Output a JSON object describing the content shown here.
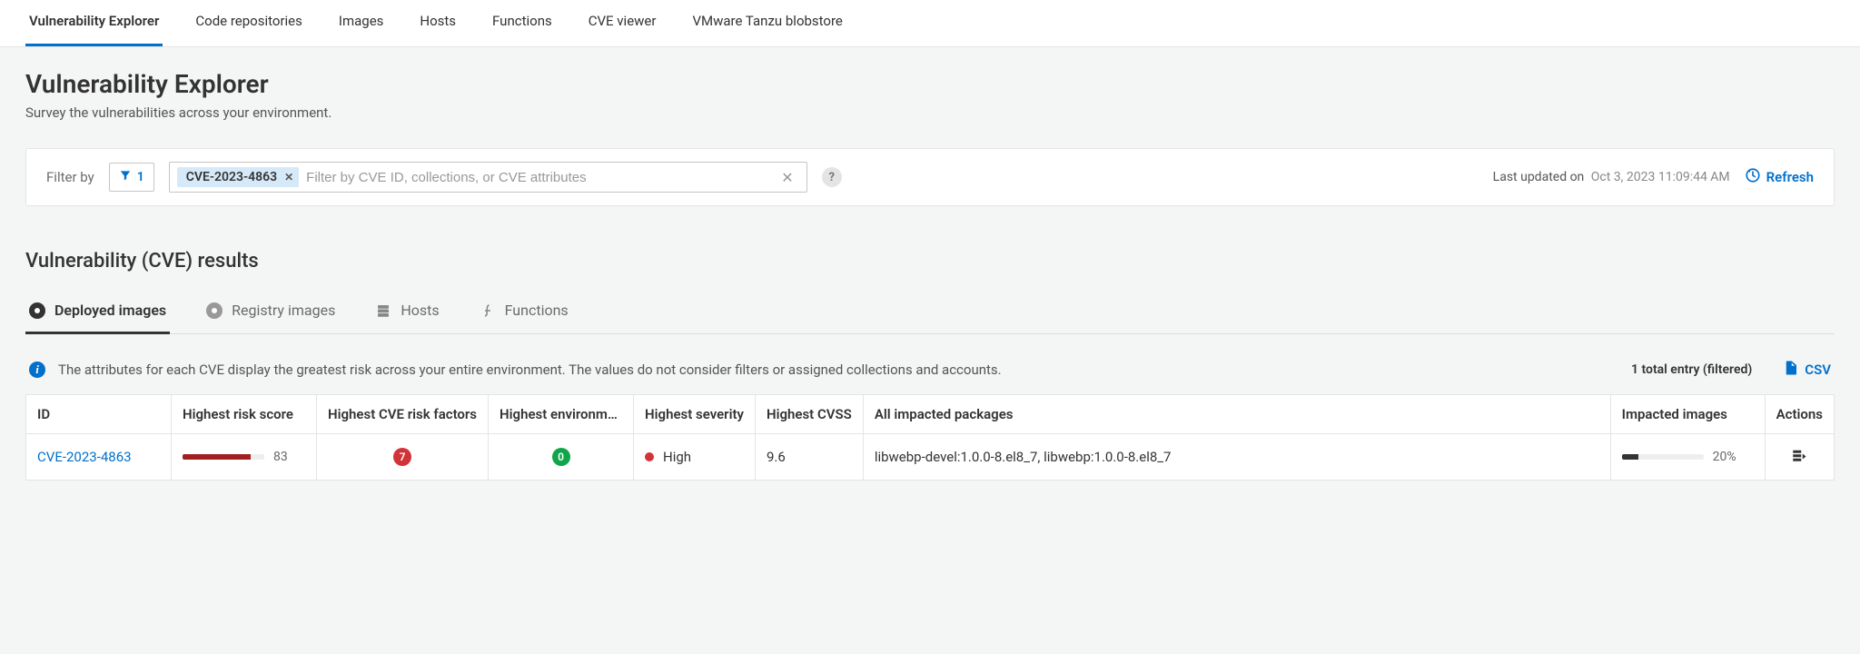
{
  "topTabs": {
    "items": [
      {
        "label": "Vulnerability Explorer",
        "active": true
      },
      {
        "label": "Code repositories",
        "active": false
      },
      {
        "label": "Images",
        "active": false
      },
      {
        "label": "Hosts",
        "active": false
      },
      {
        "label": "Functions",
        "active": false
      },
      {
        "label": "CVE viewer",
        "active": false
      },
      {
        "label": "VMware Tanzu blobstore",
        "active": false
      }
    ]
  },
  "header": {
    "title": "Vulnerability Explorer",
    "subtitle": "Survey the vulnerabilities across your environment."
  },
  "filter": {
    "label": "Filter by",
    "count": "1",
    "chip": "CVE-2023-4863",
    "placeholder": "Filter by CVE ID, collections, or CVE attributes",
    "lastUpdatedLabel": "Last updated on",
    "lastUpdatedTs": "Oct 3, 2023 11:09:44 AM",
    "refreshLabel": "Refresh"
  },
  "results": {
    "title": "Vulnerability (CVE) results",
    "tabs": [
      {
        "label": "Deployed images",
        "icon": "dot-active",
        "active": true
      },
      {
        "label": "Registry images",
        "icon": "dot-grey",
        "active": false
      },
      {
        "label": "Hosts",
        "icon": "host",
        "active": false
      },
      {
        "label": "Functions",
        "icon": "function",
        "active": false
      }
    ],
    "infoText": "The attributes for each CVE display the greatest risk across your entire environment. The values do not consider filters or assigned collections and accounts.",
    "totalEntries": "1 total entry (filtered)",
    "csvLabel": "CSV"
  },
  "table": {
    "columns": {
      "id": "ID",
      "riskScore": "Highest risk score",
      "riskFactors": "Highest CVE risk factors",
      "envFactors": "Highest environme...",
      "severity": "Highest severity",
      "cvss": "Highest CVSS",
      "packages": "All impacted packages",
      "images": "Impacted images",
      "actions": "Actions"
    },
    "rows": [
      {
        "id": "CVE-2023-4863",
        "riskScore": "83",
        "riskScorePct": 83,
        "riskFactors": "7",
        "riskFactorsColor": "#d13438",
        "envFactors": "0",
        "envFactorsColor": "#10a54a",
        "severityLabel": "High",
        "severityColor": "#d13438",
        "cvss": "9.6",
        "packages": "libwebp-devel:1.0.0-8.el8_7, libwebp:1.0.0-8.el8_7",
        "imagesPct": 20,
        "imagesLabel": "20%"
      }
    ]
  },
  "colors": {
    "link": "#0070cc",
    "riskBar": "#a21f1f"
  }
}
